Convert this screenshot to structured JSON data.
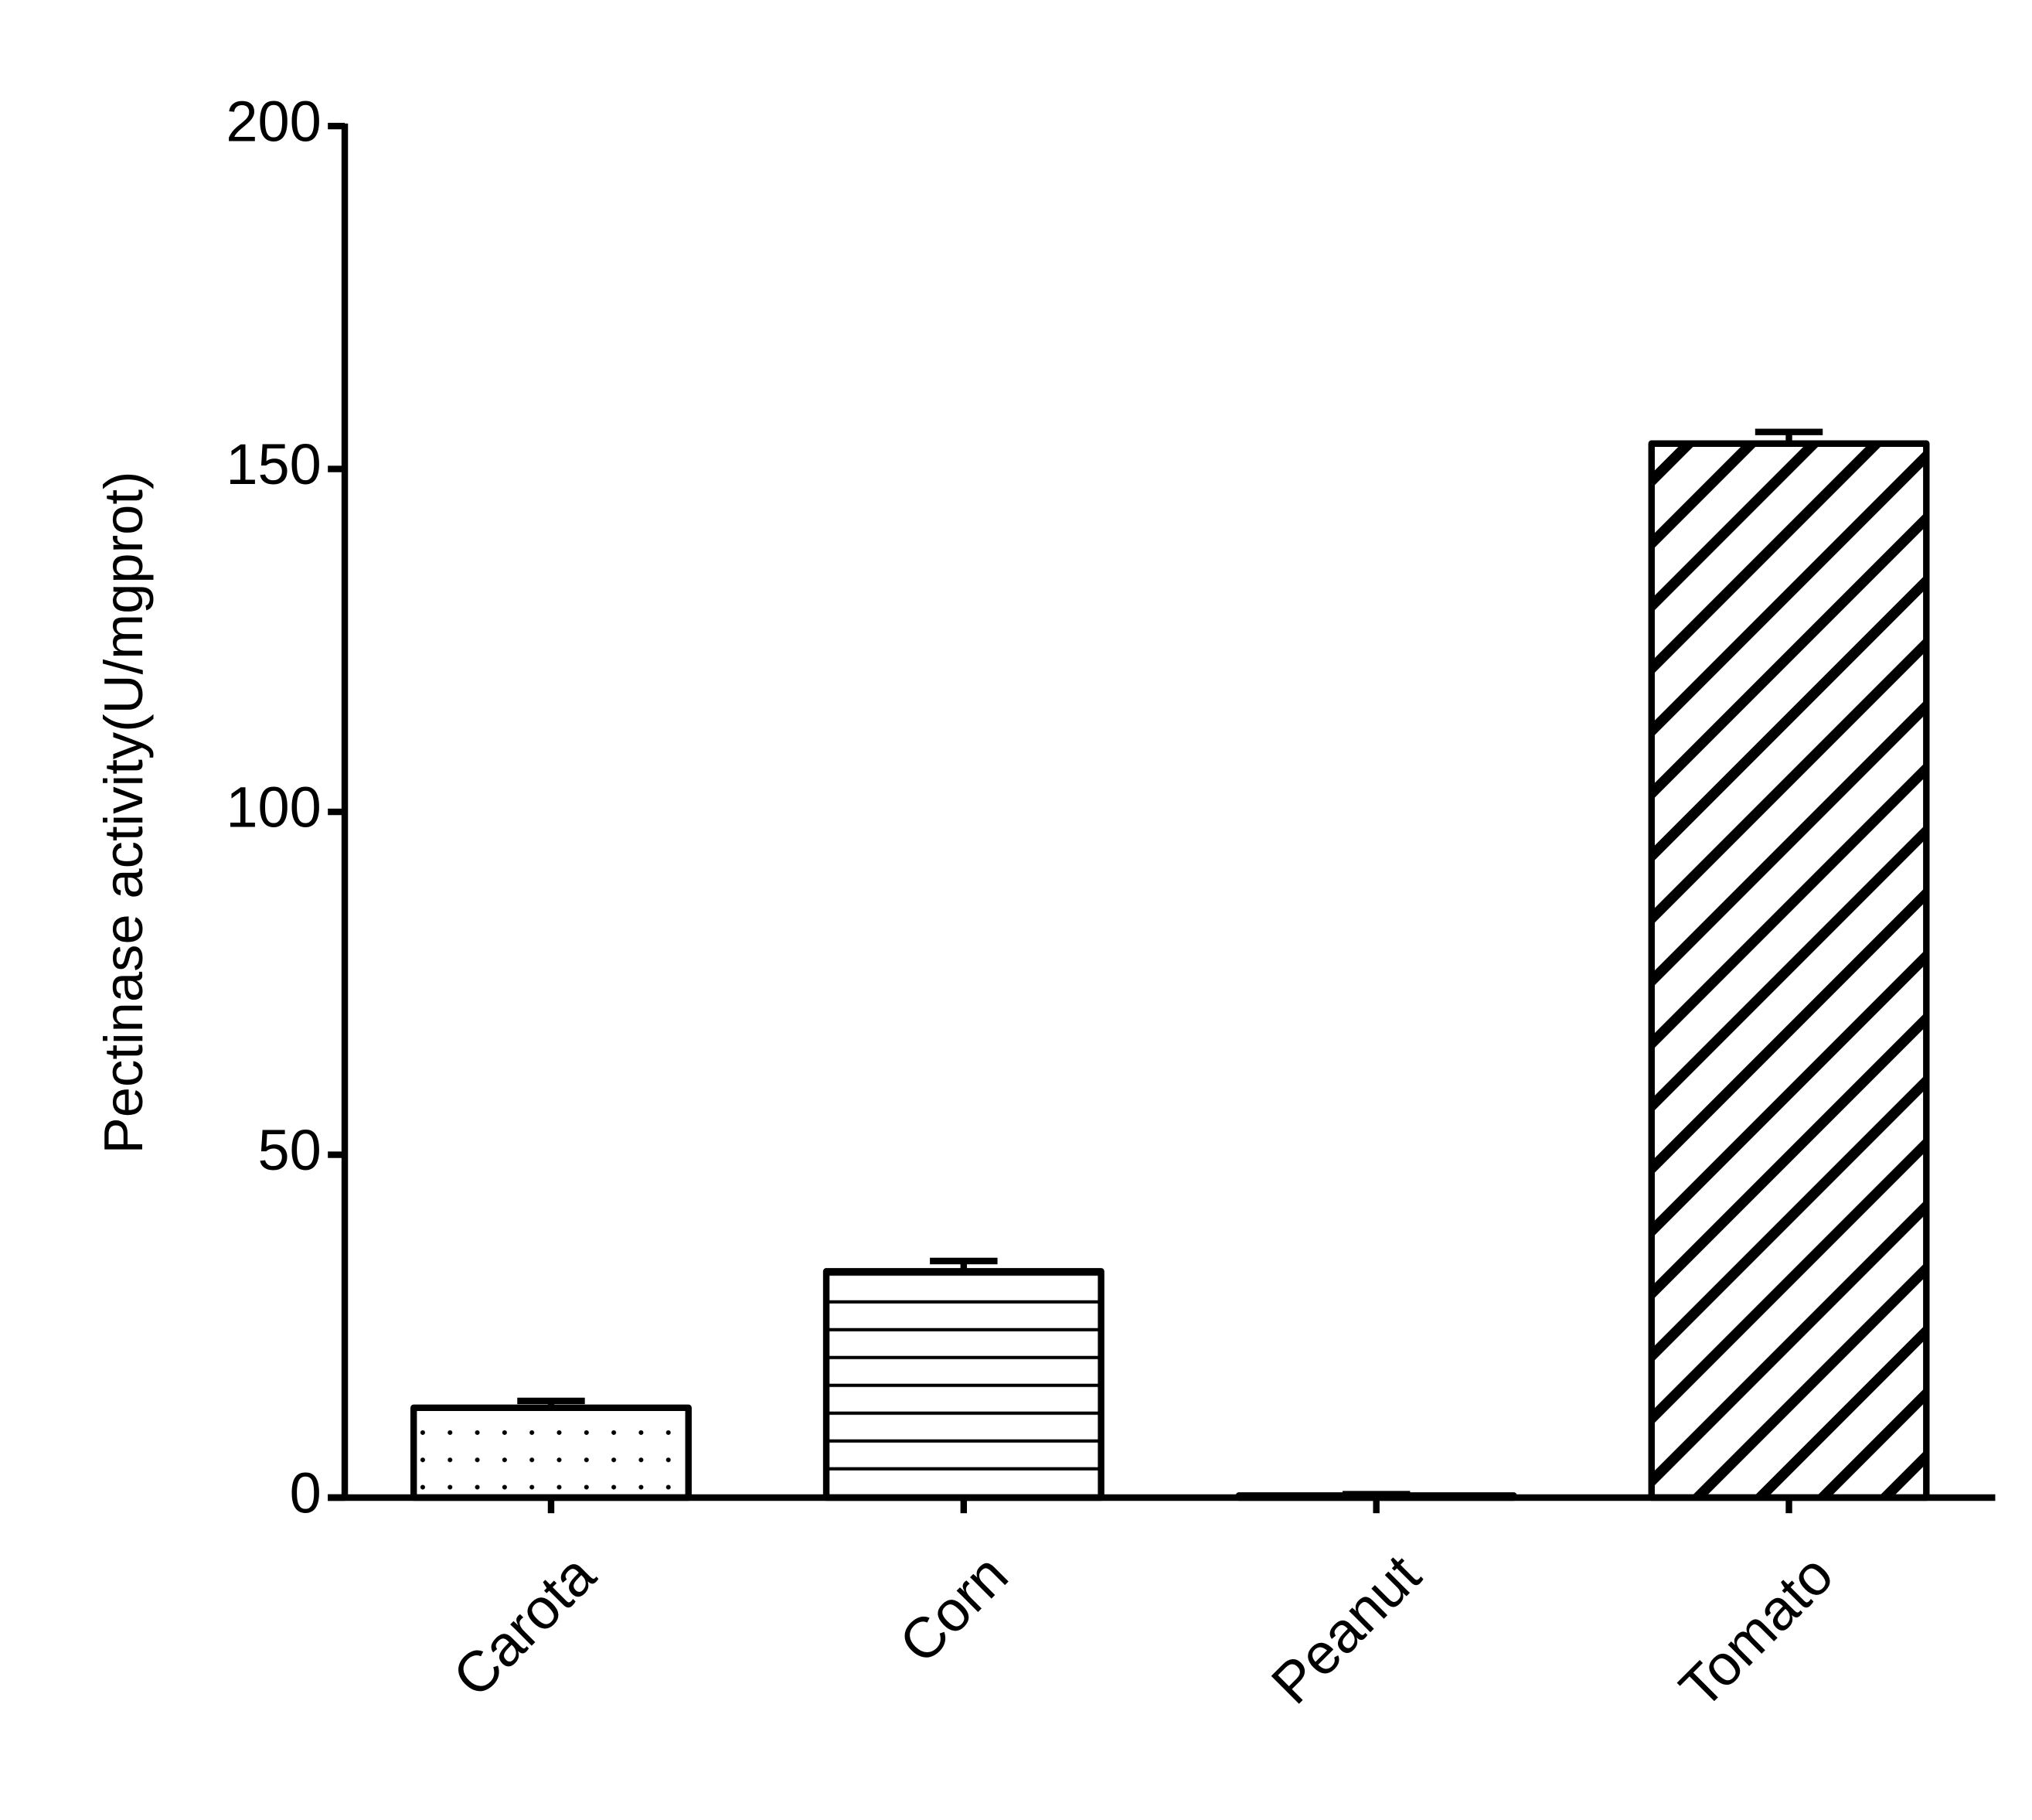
{
  "chart_data": {
    "type": "bar",
    "y_label": "Pectinase activity(U/mgprot)",
    "categories": [
      "Carota",
      "Corn",
      "Peanut",
      "Tomato"
    ],
    "values": [
      13.1,
      33.0,
      0.3,
      153.7
    ],
    "errors": [
      1.0,
      1.5,
      0.2,
      1.7
    ],
    "patterns": [
      "dots",
      "horizontal",
      "none",
      "diagonal"
    ],
    "color": "#000000",
    "ylim": [
      0,
      200
    ],
    "yticks": [
      0,
      50,
      100,
      150,
      200
    ],
    "grid": false
  }
}
